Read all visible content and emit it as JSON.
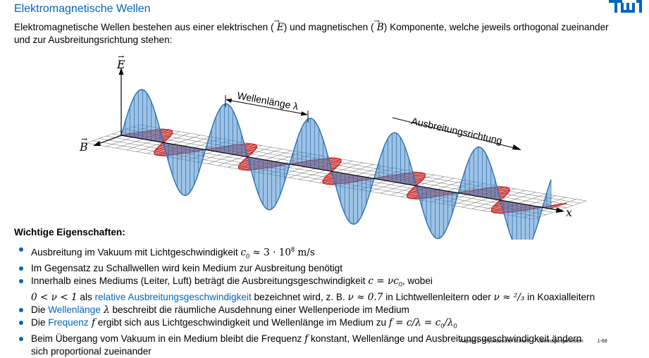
{
  "slide": {
    "title": "Elektromagnetische Wellen",
    "intro": {
      "part1": "Elektromagnetische Wellen bestehen aus einer elektrischen (",
      "e_symbol": "E",
      "part2": ") und magnetischen (",
      "b_symbol": "B",
      "part3": ") Komponente, welche jeweils orthogonal zueinander",
      "line2": "und zur Ausbreitungsrichtung stehen:"
    }
  },
  "figure": {
    "e_axis_label": "E",
    "b_axis_label": "B",
    "x_axis_label": "x",
    "wavelength_label": "Wellenlänge λ",
    "direction_label": "Ausbreitungsrichtung",
    "colors": {
      "e_field": "#4a90d0",
      "b_field": "#d42020",
      "grid": "#777777"
    }
  },
  "properties": {
    "heading": "Wichtige Eigenschaften:",
    "b1": {
      "text": "Ausbreitung im Vakuum mit Lichtgeschwindigkeit ",
      "c0_base": "c",
      "c0_sub": "0",
      "approx": " ≈ 3 · 10",
      "exp": "8",
      "unit": " m/s"
    },
    "b2": {
      "text": "Im Gegensatz zu Schallwellen wird kein Medium zur Ausbreitung benötigt"
    },
    "b3": {
      "text": "Innerhalb eines Mediums (Leiter, Luft) beträgt die Ausbreitungsgeschwindigkeit ",
      "formula": "c = νc",
      "formula_sub": "0",
      "after": ", wobei",
      "line2_math": "0 < ν < 1",
      "line2_pre": " als ",
      "line2_link": "relative Ausbreitungsgeschwindigkeit",
      "line2_mid": " bezeichnet wird, z. B. ",
      "nu1": "ν ≈ 0.7",
      "line2_mid2": " in Lichtwellenleitern oder ",
      "nu2": "ν ≈ ²/₃",
      "line2_end": " in Koaxialleitern"
    },
    "b4": {
      "pre": "Die ",
      "link": "Wellenlänge",
      "sym": " λ",
      "post": " beschreibt die räumliche Ausdehnung einer Wellenperiode im Medium"
    },
    "b5": {
      "pre": "Die ",
      "link": "Frequenz",
      "sym": " f",
      "mid": " ergibt sich aus Lichtgeschwindigkeit und Wellenlänge im Medium zu ",
      "formula": "f = c/λ = c",
      "sub0": "0",
      "slash": "/λ",
      "sub1": "0"
    },
    "b6": {
      "pre": "Beim Übergang vom Vakuum in ein Medium bleibt die Frequenz ",
      "sym": "f",
      "post": " konstant, Wellenlänge und Ausbreitungsgeschwindigkeit ändern",
      "line2": "sich proportional zueinander"
    }
  },
  "footer": {
    "text": "Kapitel 1: Physikalische Schicht — Übertragungsmedien",
    "page": "1-68"
  }
}
